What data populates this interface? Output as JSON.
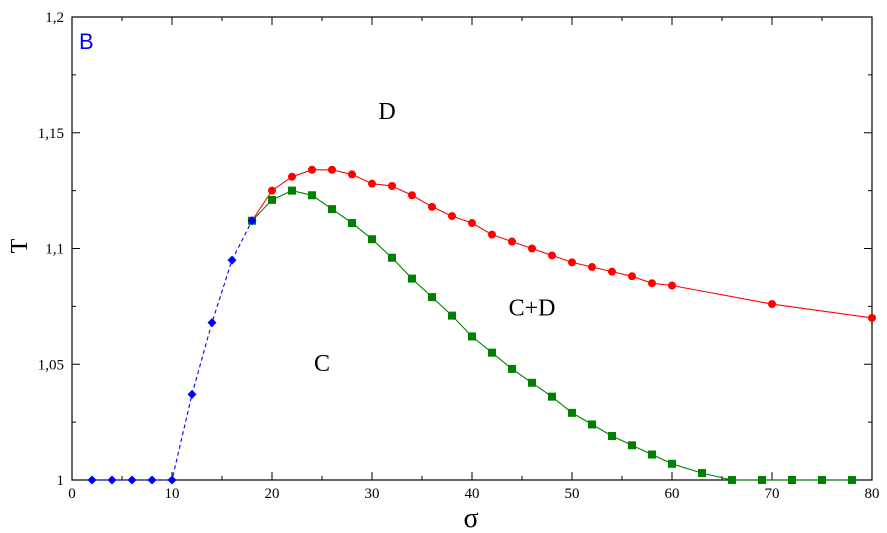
{
  "chart_data": {
    "type": "line",
    "panel_label": "B",
    "xlabel": "σ",
    "ylabel": "T",
    "xlim": [
      0,
      80
    ],
    "ylim": [
      1.0,
      1.2
    ],
    "x_ticks": [
      0,
      10,
      20,
      30,
      40,
      50,
      60,
      70,
      80
    ],
    "x_tick_labels": [
      "0",
      "10",
      "20",
      "30",
      "40",
      "50",
      "60",
      "70",
      "80"
    ],
    "y_ticks": [
      1.0,
      1.05,
      1.1,
      1.15,
      1.2
    ],
    "y_tick_labels": [
      "1",
      "1,05",
      "1,1",
      "1,15",
      "1,2"
    ],
    "grid": false,
    "legend": "none",
    "region_labels": [
      {
        "text": "D",
        "x": 31.5,
        "y": 1.156
      },
      {
        "text": "C+D",
        "x": 46,
        "y": 1.071
      },
      {
        "text": "C",
        "x": 25,
        "y": 1.047
      }
    ],
    "series": [
      {
        "color": "#0000ff",
        "marker": "diamond",
        "line_style": "dashed",
        "x": [
          2,
          4,
          6,
          8,
          10,
          12,
          14,
          16,
          18
        ],
        "y": [
          1.0,
          1.0,
          1.0,
          1.0,
          1.0,
          1.037,
          1.068,
          1.095,
          1.112
        ]
      },
      {
        "color": "#ff0000",
        "marker": "circle",
        "line_style": "solid",
        "x": [
          18,
          20,
          22,
          24,
          26,
          28,
          30,
          32,
          34,
          36,
          38,
          40,
          42,
          44,
          46,
          48,
          50,
          52,
          54,
          56,
          58,
          60,
          70,
          80
        ],
        "y": [
          1.112,
          1.125,
          1.131,
          1.134,
          1.134,
          1.132,
          1.128,
          1.127,
          1.123,
          1.118,
          1.114,
          1.111,
          1.106,
          1.103,
          1.1,
          1.097,
          1.094,
          1.092,
          1.09,
          1.088,
          1.085,
          1.084,
          1.076,
          1.07
        ]
      },
      {
        "color": "#008000",
        "marker": "square",
        "line_style": "solid",
        "x": [
          18,
          20,
          22,
          24,
          26,
          28,
          30,
          32,
          34,
          36,
          38,
          40,
          42,
          44,
          46,
          48,
          50,
          52,
          54,
          56,
          58,
          60,
          63,
          66,
          69,
          72,
          75,
          78
        ],
        "y": [
          1.112,
          1.121,
          1.125,
          1.123,
          1.117,
          1.111,
          1.104,
          1.096,
          1.087,
          1.079,
          1.071,
          1.062,
          1.055,
          1.048,
          1.042,
          1.036,
          1.029,
          1.024,
          1.019,
          1.015,
          1.011,
          1.007,
          1.003,
          1.0,
          1.0,
          1.0,
          1.0,
          1.0
        ]
      }
    ]
  }
}
